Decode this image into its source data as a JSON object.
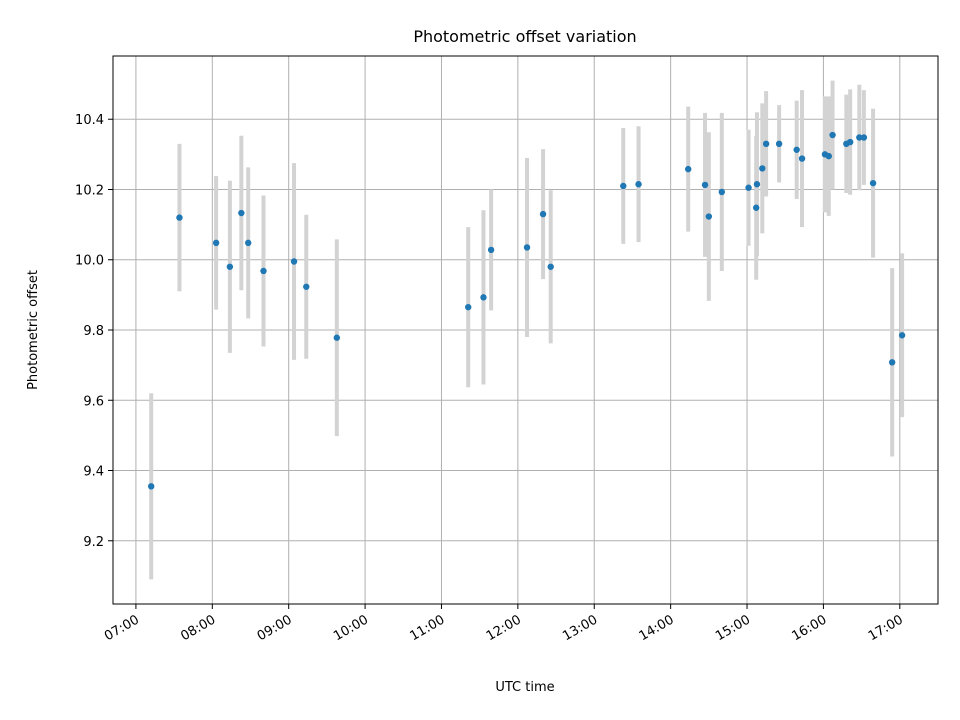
{
  "chart_data": {
    "type": "scatter",
    "title": "Photometric offset variation",
    "xlabel": "UTC time",
    "ylabel": "Photometric offset",
    "grid": true,
    "x_unit": "hours UTC (decimal)",
    "xlim": [
      6.7,
      17.5
    ],
    "ylim": [
      9.02,
      10.58
    ],
    "x_ticks": [
      7,
      8,
      9,
      10,
      11,
      12,
      13,
      14,
      15,
      16,
      17
    ],
    "x_tick_labels": [
      "07:00",
      "08:00",
      "09:00",
      "10:00",
      "11:00",
      "12:00",
      "13:00",
      "14:00",
      "15:00",
      "16:00",
      "17:00"
    ],
    "y_ticks": [
      9.2,
      9.4,
      9.6,
      9.8,
      10.0,
      10.2,
      10.4
    ],
    "y_tick_labels": [
      "9.2",
      "9.4",
      "9.6",
      "9.8",
      "10.0",
      "10.2",
      "10.4"
    ],
    "series": [
      {
        "name": "offset",
        "marker_color": "#1f77b4",
        "errorbar_color": "#d3d3d3",
        "points": [
          {
            "x": 7.2,
            "y": 9.355,
            "err": 0.265
          },
          {
            "x": 7.57,
            "y": 10.12,
            "err": 0.21
          },
          {
            "x": 8.05,
            "y": 10.048,
            "err": 0.19
          },
          {
            "x": 8.23,
            "y": 9.98,
            "err": 0.245
          },
          {
            "x": 8.38,
            "y": 10.133,
            "err": 0.22
          },
          {
            "x": 8.47,
            "y": 10.048,
            "err": 0.215
          },
          {
            "x": 8.67,
            "y": 9.968,
            "err": 0.215
          },
          {
            "x": 9.07,
            "y": 9.995,
            "err": 0.28
          },
          {
            "x": 9.23,
            "y": 9.923,
            "err": 0.205
          },
          {
            "x": 9.63,
            "y": 9.778,
            "err": 0.28
          },
          {
            "x": 11.35,
            "y": 9.865,
            "err": 0.228
          },
          {
            "x": 11.55,
            "y": 9.893,
            "err": 0.248
          },
          {
            "x": 11.65,
            "y": 10.028,
            "err": 0.172
          },
          {
            "x": 12.12,
            "y": 10.035,
            "err": 0.255
          },
          {
            "x": 12.33,
            "y": 10.13,
            "err": 0.185
          },
          {
            "x": 12.43,
            "y": 9.98,
            "err": 0.218
          },
          {
            "x": 13.38,
            "y": 10.21,
            "err": 0.165
          },
          {
            "x": 13.58,
            "y": 10.215,
            "err": 0.165
          },
          {
            "x": 14.23,
            "y": 10.258,
            "err": 0.178
          },
          {
            "x": 14.45,
            "y": 10.213,
            "err": 0.205
          },
          {
            "x": 14.5,
            "y": 10.123,
            "err": 0.24
          },
          {
            "x": 14.67,
            "y": 10.193,
            "err": 0.225
          },
          {
            "x": 15.02,
            "y": 10.205,
            "err": 0.165
          },
          {
            "x": 15.12,
            "y": 10.148,
            "err": 0.205
          },
          {
            "x": 15.13,
            "y": 10.215,
            "err": 0.205
          },
          {
            "x": 15.2,
            "y": 10.26,
            "err": 0.185
          },
          {
            "x": 15.25,
            "y": 10.33,
            "err": 0.15
          },
          {
            "x": 15.42,
            "y": 10.33,
            "err": 0.11
          },
          {
            "x": 15.65,
            "y": 10.313,
            "err": 0.14
          },
          {
            "x": 15.72,
            "y": 10.288,
            "err": 0.195
          },
          {
            "x": 16.02,
            "y": 10.3,
            "err": 0.165
          },
          {
            "x": 16.07,
            "y": 10.295,
            "err": 0.17
          },
          {
            "x": 16.12,
            "y": 10.355,
            "err": 0.155
          },
          {
            "x": 16.3,
            "y": 10.33,
            "err": 0.14
          },
          {
            "x": 16.35,
            "y": 10.335,
            "err": 0.15
          },
          {
            "x": 16.47,
            "y": 10.348,
            "err": 0.15
          },
          {
            "x": 16.53,
            "y": 10.348,
            "err": 0.135
          },
          {
            "x": 16.65,
            "y": 10.218,
            "err": 0.212
          },
          {
            "x": 16.9,
            "y": 9.708,
            "err": 0.268
          },
          {
            "x": 17.03,
            "y": 9.785,
            "err": 0.233
          }
        ]
      }
    ]
  }
}
